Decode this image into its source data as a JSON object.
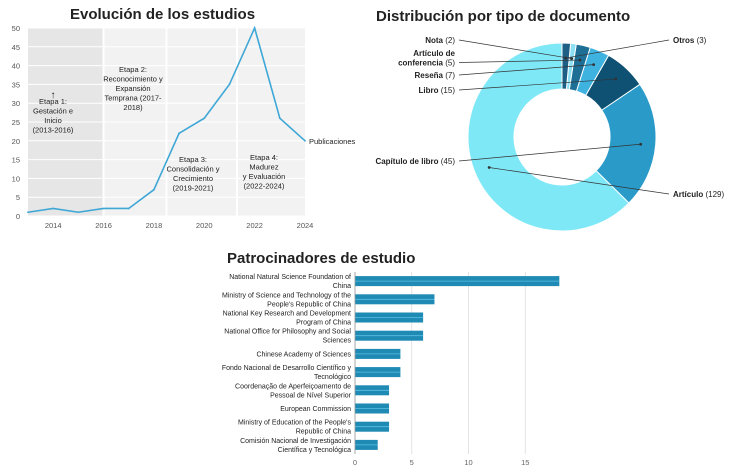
{
  "chart_data": [
    {
      "type": "line",
      "title": "Evolución de los estudios",
      "x": [
        2013,
        2014,
        2015,
        2016,
        2017,
        2018,
        2019,
        2020,
        2021,
        2022,
        2023,
        2024
      ],
      "series": [
        {
          "name": "Publicaciones",
          "values": [
            1,
            2,
            1,
            2,
            2,
            7,
            22,
            26,
            35,
            50,
            26,
            20
          ]
        }
      ],
      "xticks": [
        "2014",
        "2016",
        "2018",
        "2020",
        "2022",
        "2024"
      ],
      "yticks": [
        "0",
        "5",
        "10",
        "15",
        "20",
        "25",
        "30",
        "35",
        "40",
        "45",
        "50"
      ],
      "xlim": [
        2013,
        2024
      ],
      "ylim": [
        0,
        50
      ],
      "grid": true,
      "stages": [
        {
          "label": "Etapa 1:\nGestación e\nInicio\n(2013-2016)",
          "from": 2013,
          "to": 2016,
          "shaded": true
        },
        {
          "label": "Etapa 2:\nReconocimiento y\nExpansión\nTemprana (2017-\n2018)",
          "from": 2016,
          "to": 2018.5,
          "shaded": false
        },
        {
          "label": "Etapa 3:\nConsolidación y\nCrecimiento\n(2019-2021)",
          "from": 2018.5,
          "to": 2021.3,
          "shaded": false
        },
        {
          "label": "Etapa 4:\nMadurez\ny Evaluación\n(2022-2024)",
          "from": 2021.3,
          "to": 2024,
          "shaded": false
        }
      ],
      "arrow": "↑",
      "colors": {
        "line": "#3fa7d6",
        "shade": "#e6e6e6",
        "band": "#f2f2f2"
      }
    },
    {
      "type": "pie",
      "title": "Distribución por tipo de documento",
      "slices": [
        {
          "label": "Artículo",
          "value": 129,
          "color": "#7fe8f7"
        },
        {
          "label": "Capítulo de libro",
          "value": 45,
          "color": "#2a9bc9"
        },
        {
          "label": "Libro",
          "value": 15,
          "color": "#0e5173"
        },
        {
          "label": "Reseña",
          "value": 7,
          "color": "#3fb3e0"
        },
        {
          "label": "Artículo de\nconferencia",
          "value": 5,
          "color": "#1d6f96"
        },
        {
          "label": "Nota",
          "value": 2,
          "color": "#8be0f2"
        },
        {
          "label": "Otros",
          "value": 3,
          "color": "#1d5f85"
        }
      ]
    },
    {
      "type": "bar",
      "orientation": "horizontal",
      "title": "Patrocinadores de estudio",
      "categories": [
        "National Natural Science Foundation of\nChina",
        "Ministry of Science and Technology of the\nPeople's Republic of China",
        "National Key Research and Development\nProgram of China",
        "National Office for Philosophy and Social\nSciences",
        "Chinese Academy of Sciences",
        "Fondo Nacional de Desarrollo Científico y\nTecnológico",
        "Coordenação de Aperfeiçoamento de\nPessoal de Nível Superior",
        "European Commission",
        "Ministry of Education of the People's\nRepublic of China",
        "Comisión Nacional de Investigación\nCientífica y Tecnológica"
      ],
      "values": [
        18,
        7,
        6,
        6,
        4,
        4,
        3,
        3,
        3,
        2
      ],
      "xticks": [
        "0",
        "5",
        "10",
        "15"
      ],
      "xlim": [
        0,
        18.5
      ],
      "grid": true,
      "colors": {
        "bar": "#1f8ab3"
      }
    }
  ]
}
